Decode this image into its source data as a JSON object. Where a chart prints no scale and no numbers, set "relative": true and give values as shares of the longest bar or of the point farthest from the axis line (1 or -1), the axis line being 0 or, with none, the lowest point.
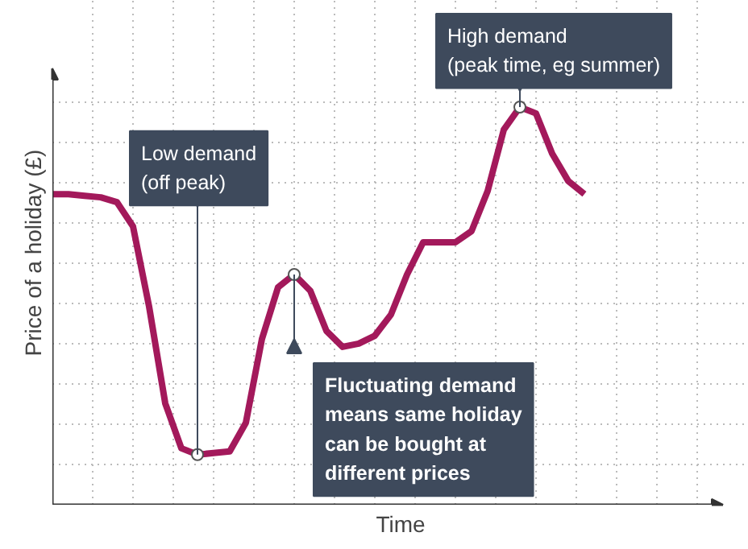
{
  "chart_data": {
    "type": "line",
    "relative": true,
    "xlabel": "Time",
    "ylabel": "Price of a holiday (£)",
    "grid": true,
    "marker": "none",
    "line_style": "solid",
    "categories": [
      null,
      null,
      null,
      null,
      null,
      null,
      null,
      null,
      null,
      null,
      null,
      null,
      null,
      null,
      null,
      null,
      null,
      null,
      null,
      null,
      null,
      null,
      null,
      null,
      null,
      null,
      null,
      null,
      null,
      null,
      null,
      null,
      null,
      null
    ],
    "series": [
      {
        "color": "#a3195b",
        "values": [
          0.781,
          0.781,
          0.777,
          0.773,
          0.761,
          0.7,
          0.498,
          0.255,
          0.142,
          0.126,
          0.13,
          0.134,
          0.206,
          0.417,
          0.547,
          0.579,
          0.538,
          0.437,
          0.397,
          0.405,
          0.425,
          0.478,
          0.579,
          0.66,
          0.66,
          0.66,
          0.688,
          0.789,
          0.943,
          1,
          0.984,
          0.883,
          0.814,
          0.781
        ]
      }
    ],
    "annotations": [
      "Low demand\n(off peak)",
      "Fluctuating demand\nmeans same holiday\ncan be bought at\ndifferent prices",
      "High demand\n(peak time, eg summer)"
    ]
  }
}
